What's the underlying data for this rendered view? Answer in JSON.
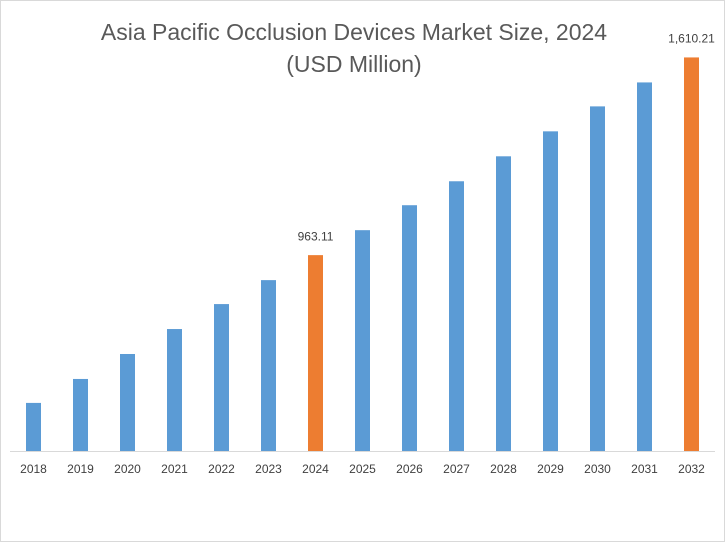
{
  "chart_data": {
    "type": "bar",
    "title": "Asia Pacific Occlusion Devices Market Size, 2024",
    "subtitle": "(USD Million)",
    "categories": [
      "2018",
      "2019",
      "2020",
      "2021",
      "2022",
      "2023",
      "2024",
      "2025",
      "2026",
      "2027",
      "2028",
      "2029",
      "2030",
      "2031",
      "2032"
    ],
    "values": [
      479.4,
      557.8,
      639.5,
      721.2,
      802.9,
      881.3,
      963.11,
      1044.8,
      1126.5,
      1204.9,
      1286.6,
      1368.3,
      1450,
      1528.4,
      1610.21
    ],
    "value_labels": [
      null,
      null,
      null,
      null,
      null,
      null,
      "963.11",
      null,
      null,
      null,
      null,
      null,
      null,
      null,
      "1,610.21"
    ],
    "colors": [
      "#5b9bd5",
      "#5b9bd5",
      "#5b9bd5",
      "#5b9bd5",
      "#5b9bd5",
      "#5b9bd5",
      "#ed7d31",
      "#5b9bd5",
      "#5b9bd5",
      "#5b9bd5",
      "#5b9bd5",
      "#5b9bd5",
      "#5b9bd5",
      "#5b9bd5",
      "#ed7d31"
    ],
    "ylim": [
      322,
      1700
    ]
  }
}
